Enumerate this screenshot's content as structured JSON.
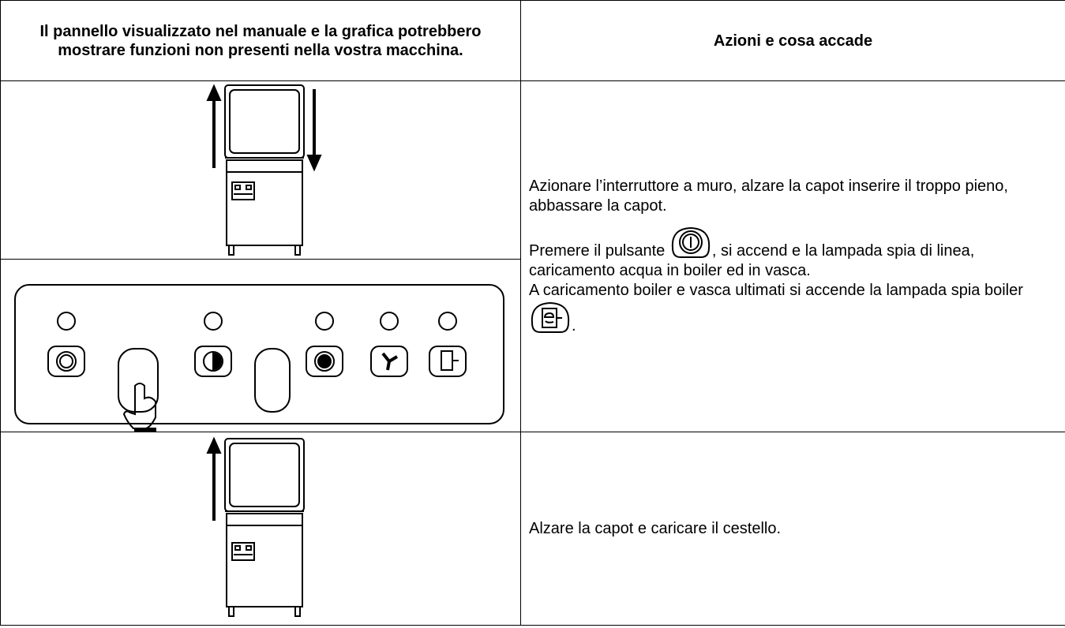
{
  "table": {
    "header": [
      "Il pannello visualizzato nel manuale e la grafica potrebbero mostrare funzioni non presenti nella vostra macchina.",
      "Azioni e cosa accade"
    ],
    "rows": [
      {
        "actions": [
          "Azionare l’interruttore a muro, alzare la capot  inserire il troppo pieno, abbassare la capot.",
          "Premere il pulsante",
          ", si accend e la lampada spia di linea, caricamento acqua in boiler ed in vasca.",
          "A caricamento boiler e vasca ultimati si accende la lampada spia boiler",
          "."
        ]
      },
      {
        "actions": [
          "Alzare la capot e caricare il cestello."
        ]
      }
    ]
  }
}
